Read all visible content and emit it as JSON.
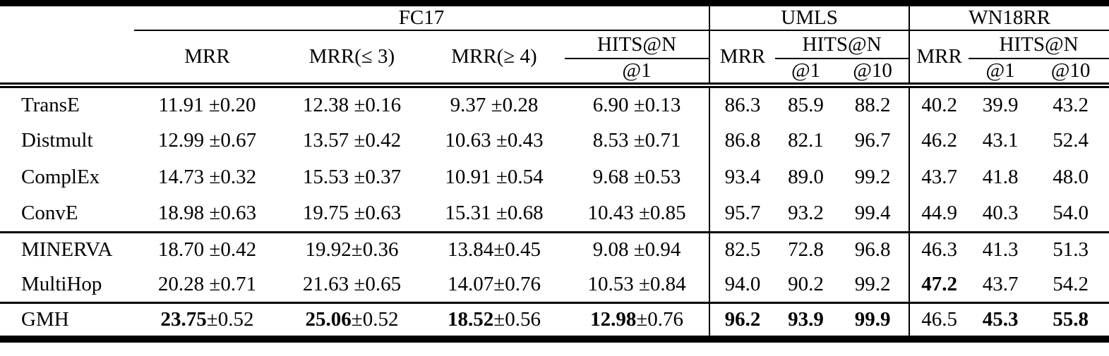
{
  "table": {
    "datasets": [
      "FC17",
      "UMLS",
      "WN18RR"
    ],
    "subheaders": {
      "fc17": {
        "mrr": "MRR",
        "mrr_le3": "MRR(≤ 3)",
        "mrr_ge4": "MRR(≥ 4)",
        "hits": "HITS@N",
        "at1": "@1"
      },
      "umls": {
        "mrr": "MRR",
        "hits": "HITS@N",
        "at1": "@1",
        "at10": "@10"
      },
      "wn18rr": {
        "mrr": "MRR",
        "hits": "HITS@N",
        "at1": "@1",
        "at10": "@10"
      }
    },
    "rows": [
      {
        "model": "TransE",
        "fc17": [
          {
            "m": "11.91",
            "e": " ±0.20",
            "b": false
          },
          {
            "m": "12.38",
            "e": " ±0.16",
            "b": false
          },
          {
            "m": "9.37",
            "e": " ±0.28",
            "b": false
          },
          {
            "m": "6.90",
            "e": " ±0.13",
            "b": false
          }
        ],
        "umls": [
          {
            "t": "86.3",
            "b": false
          },
          {
            "t": "85.9",
            "b": false
          },
          {
            "t": "88.2",
            "b": false
          }
        ],
        "wn18rr": [
          {
            "t": "40.2",
            "b": false
          },
          {
            "t": "39.9",
            "b": false
          },
          {
            "t": "43.2",
            "b": false
          }
        ]
      },
      {
        "model": "Distmult",
        "fc17": [
          {
            "m": "12.99",
            "e": " ±0.67",
            "b": false
          },
          {
            "m": "13.57",
            "e": " ±0.42",
            "b": false
          },
          {
            "m": "10.63",
            "e": " ±0.43",
            "b": false
          },
          {
            "m": "8.53",
            "e": " ±0.71",
            "b": false
          }
        ],
        "umls": [
          {
            "t": "86.8",
            "b": false
          },
          {
            "t": "82.1",
            "b": false
          },
          {
            "t": "96.7",
            "b": false
          }
        ],
        "wn18rr": [
          {
            "t": "46.2",
            "b": false
          },
          {
            "t": "43.1",
            "b": false
          },
          {
            "t": "52.4",
            "b": false
          }
        ]
      },
      {
        "model": "ComplEx",
        "fc17": [
          {
            "m": "14.73",
            "e": " ±0.32",
            "b": false
          },
          {
            "m": "15.53",
            "e": " ±0.37",
            "b": false
          },
          {
            "m": "10.91",
            "e": " ±0.54",
            "b": false
          },
          {
            "m": "9.68",
            "e": " ±0.53",
            "b": false
          }
        ],
        "umls": [
          {
            "t": "93.4",
            "b": false
          },
          {
            "t": "89.0",
            "b": false
          },
          {
            "t": "99.2",
            "b": false
          }
        ],
        "wn18rr": [
          {
            "t": "43.7",
            "b": false
          },
          {
            "t": "41.8",
            "b": false
          },
          {
            "t": "48.0",
            "b": false
          }
        ]
      },
      {
        "model": "ConvE",
        "fc17": [
          {
            "m": "18.98",
            "e": " ±0.63",
            "b": false
          },
          {
            "m": "19.75",
            "e": " ±0.63",
            "b": false
          },
          {
            "m": "15.31",
            "e": " ±0.68",
            "b": false
          },
          {
            "m": "10.43",
            "e": " ±0.85",
            "b": false
          }
        ],
        "umls": [
          {
            "t": "95.7",
            "b": false
          },
          {
            "t": "93.2",
            "b": false
          },
          {
            "t": "99.4",
            "b": false
          }
        ],
        "wn18rr": [
          {
            "t": "44.9",
            "b": false
          },
          {
            "t": "40.3",
            "b": false
          },
          {
            "t": "54.0",
            "b": false
          }
        ]
      },
      {
        "model": "MINERVA",
        "rule_above": true,
        "sec": "path",
        "fc17": [
          {
            "m": "18.70",
            "e": " ±0.42",
            "b": false
          },
          {
            "m": "19.92",
            "e": "±0.36",
            "b": false
          },
          {
            "m": "13.84",
            "e": "±0.45",
            "b": false
          },
          {
            "m": "9.08",
            "e": " ±0.94",
            "b": false
          }
        ],
        "umls": [
          {
            "t": "82.5",
            "b": false
          },
          {
            "t": "72.8",
            "b": false
          },
          {
            "t": "96.8",
            "b": false
          }
        ],
        "wn18rr": [
          {
            "t": "46.3",
            "b": false
          },
          {
            "t": "41.3",
            "b": false
          },
          {
            "t": "51.3",
            "b": false
          }
        ]
      },
      {
        "model": "MultiHop",
        "sec": "path",
        "fc17": [
          {
            "m": "20.28",
            "e": " ±0.71",
            "b": false
          },
          {
            "m": "21.63",
            "e": " ±0.65",
            "b": false
          },
          {
            "m": "14.07",
            "e": "±0.76",
            "b": false
          },
          {
            "m": "10.53",
            "e": " ±0.84",
            "b": false
          }
        ],
        "umls": [
          {
            "t": "94.0",
            "b": false
          },
          {
            "t": "90.2",
            "b": false
          },
          {
            "t": "99.2",
            "b": false
          }
        ],
        "wn18rr": [
          {
            "t": "47.2",
            "b": true
          },
          {
            "t": "43.7",
            "b": false
          },
          {
            "t": "54.2",
            "b": false
          }
        ]
      },
      {
        "model": "GMH",
        "rule_above": true,
        "fc17": [
          {
            "m": "23.75",
            "e": "±0.52",
            "b": true
          },
          {
            "m": "25.06",
            "e": "±0.52",
            "b": true
          },
          {
            "m": "18.52",
            "e": "±0.56",
            "b": true
          },
          {
            "m": "12.98",
            "e": "±0.76",
            "b": true
          }
        ],
        "umls": [
          {
            "t": "96.2",
            "b": true
          },
          {
            "t": "93.9",
            "b": true
          },
          {
            "t": "99.9",
            "b": true
          }
        ],
        "wn18rr": [
          {
            "t": "46.5",
            "b": false
          },
          {
            "t": "45.3",
            "b": true
          },
          {
            "t": "55.8",
            "b": true
          }
        ]
      }
    ]
  }
}
